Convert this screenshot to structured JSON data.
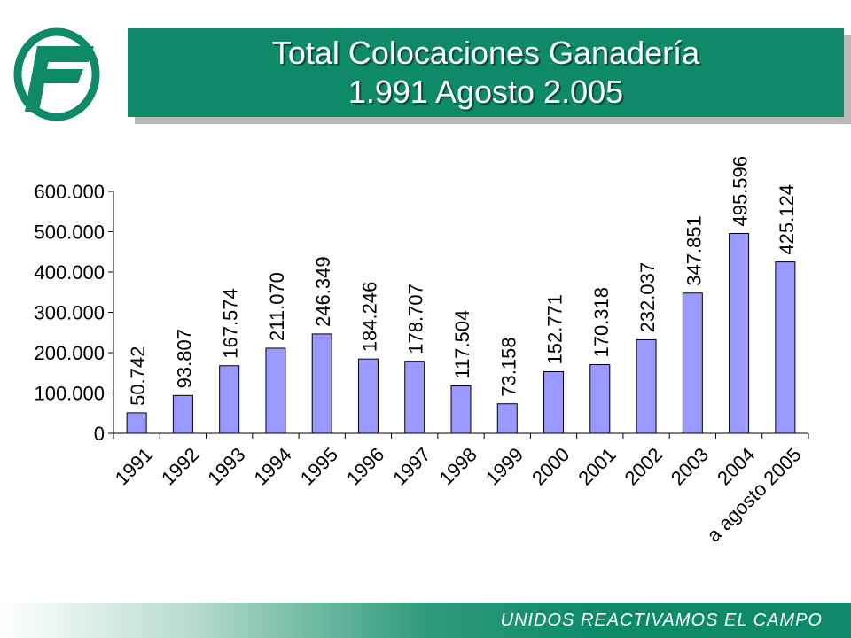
{
  "title": {
    "line1": "Total Colocaciones Ganadería",
    "line2": "1.991 Agosto 2.005"
  },
  "footer": {
    "slogan": "UNIDOS REACTIVAMOS EL CAMPO"
  },
  "colors": {
    "brand_green": "#0e8a69",
    "bar_fill": "#9999ff",
    "bar_stroke": "#000000"
  },
  "logo": {
    "icon": "bank-logo-icon"
  },
  "chart_data": {
    "type": "bar",
    "title": "",
    "xlabel": "",
    "ylabel": "",
    "ylim": [
      0,
      600000
    ],
    "yticks": [
      0,
      100000,
      200000,
      300000,
      400000,
      500000,
      600000
    ],
    "ytick_labels": [
      "0",
      "100.000",
      "200.000",
      "300.000",
      "400.000",
      "500.000",
      "600.000"
    ],
    "grid": false,
    "legend": "none",
    "categories": [
      "1991",
      "1992",
      "1993",
      "1994",
      "1995",
      "1996",
      "1997",
      "1998",
      "1999",
      "2000",
      "2001",
      "2002",
      "2003",
      "2004",
      "a agosto 2005"
    ],
    "values": [
      50742,
      93807,
      167574,
      211070,
      246349,
      184246,
      178707,
      117504,
      73158,
      152771,
      170318,
      232037,
      347851,
      495596,
      425124
    ],
    "value_labels": [
      "50.742",
      "93.807",
      "167.574",
      "211.070",
      "246.349",
      "184.246",
      "178.707",
      "117.504",
      "73.158",
      "152.771",
      "170.318",
      "232.037",
      "347.851",
      "495.596",
      "425.124"
    ]
  }
}
